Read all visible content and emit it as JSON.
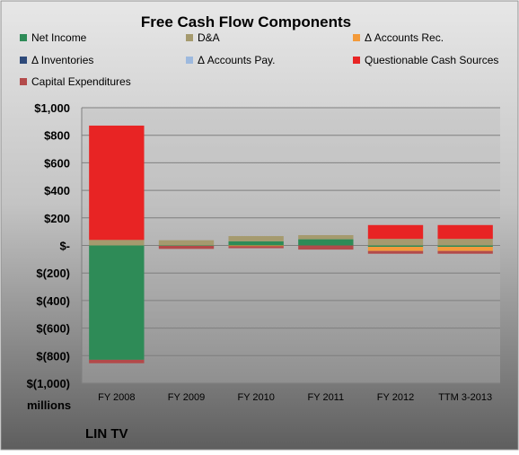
{
  "chart_data": {
    "type": "bar",
    "stacked": true,
    "title": "Free Cash Flow Components",
    "unit_label": "millions",
    "footer_label": "LIN TV",
    "categories": [
      "FY 2008",
      "FY 2009",
      "FY 2010",
      "FY 2011",
      "FY 2012",
      "TTM 3-2013"
    ],
    "ylim": [
      -1000,
      1000
    ],
    "y_ticks": [
      {
        "value": 1000,
        "label": "$1,000"
      },
      {
        "value": 800,
        "label": "$800"
      },
      {
        "value": 600,
        "label": "$600"
      },
      {
        "value": 400,
        "label": "$400"
      },
      {
        "value": 200,
        "label": "$200"
      },
      {
        "value": 0,
        "label": "$-"
      },
      {
        "value": -200,
        "label": "$(200)"
      },
      {
        "value": -400,
        "label": "$(400)"
      },
      {
        "value": -600,
        "label": "$(600)"
      },
      {
        "value": -800,
        "label": "$(800)"
      },
      {
        "value": -1000,
        "label": "$(1,000)"
      }
    ],
    "grid": true,
    "legend_position": "top",
    "series": [
      {
        "name": "Net Income",
        "color": "#2E8B57",
        "values": [
          -830,
          -3,
          30,
          45,
          -10,
          -10
        ]
      },
      {
        "name": "D&A",
        "color": "#A59A6E",
        "values": [
          40,
          38,
          38,
          30,
          48,
          48
        ]
      },
      {
        "name": "Δ Accounts Rec.",
        "color": "#F39A3A",
        "values": [
          0,
          0,
          -5,
          0,
          -30,
          -30
        ]
      },
      {
        "name": "Δ Inventories",
        "color": "#2E4A7A",
        "values": [
          0,
          0,
          0,
          0,
          0,
          0
        ]
      },
      {
        "name": "Δ Accounts Pay.",
        "color": "#9DB9DE",
        "values": [
          0,
          0,
          0,
          0,
          0,
          0
        ]
      },
      {
        "name": "Questionable Cash Sources",
        "color": "#E82424",
        "values": [
          830,
          0,
          0,
          0,
          100,
          100
        ]
      },
      {
        "name": "Capital Expenditures",
        "color": "#B34A4A",
        "values": [
          -25,
          -22,
          -15,
          -30,
          -20,
          -20
        ]
      }
    ]
  }
}
